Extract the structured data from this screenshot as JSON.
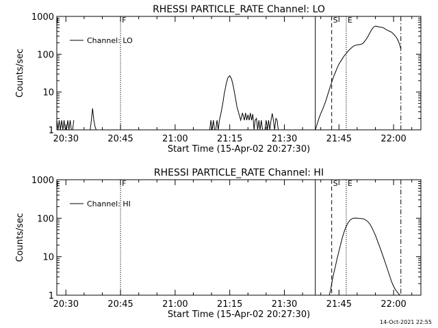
{
  "chart_data": [
    {
      "type": "line",
      "title": "RHESSI PARTICLE_RATE Channel: LO",
      "xlabel": "Start Time (15-Apr-02 20:27:30)",
      "ylabel": "Counts/sec",
      "y_scale": "log",
      "ylim": [
        1,
        1000
      ],
      "xlim": [
        "20:27:30",
        "22:07:30"
      ],
      "x_ticks": [
        "20:30",
        "20:45",
        "21:00",
        "21:15",
        "21:30",
        "21:45",
        "22:00"
      ],
      "y_ticks": [
        "1",
        "10",
        "100",
        "1000"
      ],
      "legend": {
        "position": "top-left",
        "entries": [
          "Channel: LO"
        ]
      },
      "markers": [
        {
          "label": "F",
          "time": "20:45:00",
          "style": "dotted"
        },
        {
          "label": "",
          "time": "21:38:30",
          "style": "solid"
        },
        {
          "label": "S",
          "time": "21:43:00",
          "style": "dashed"
        },
        {
          "label": "E",
          "time": "21:47:00",
          "style": "dotted"
        },
        {
          "label": "",
          "time": "22:02:00",
          "style": "dash-dot"
        }
      ],
      "series": [
        {
          "name": "Channel: LO",
          "segments": [
            {
              "x": [
                "20:27:30",
                "20:27:50",
                "20:28:10",
                "20:28:30",
                "20:28:50",
                "20:29:10",
                "20:29:30",
                "20:29:50",
                "20:30:10",
                "20:30:30",
                "20:30:50",
                "20:31:10",
                "20:31:30",
                "20:31:50",
                "20:32:10"
              ],
              "y": [
                1.8,
                1.0,
                1.8,
                1.0,
                1.8,
                1.0,
                1.8,
                1.0,
                1.0,
                1.8,
                1.0,
                1.8,
                1.0,
                1.0,
                1.8
              ]
            },
            {
              "x": [
                "20:36:40",
                "20:37:00",
                "20:37:20",
                "20:37:40",
                "20:38:00",
                "20:38:20"
              ],
              "y": [
                1.0,
                1.8,
                3.7,
                1.8,
                1.2,
                1.0
              ]
            },
            {
              "x": [
                "21:09:30",
                "21:09:50",
                "21:10:10",
                "21:10:30",
                "21:10:50",
                "21:11:10",
                "21:11:30",
                "21:11:50",
                "21:12:10",
                "21:12:30",
                "21:13:00",
                "21:13:30",
                "21:14:00",
                "21:14:30",
                "21:15:00",
                "21:15:30",
                "21:16:00",
                "21:16:30",
                "21:17:00",
                "21:17:30",
                "21:18:00",
                "21:18:30",
                "21:19:00",
                "21:19:20",
                "21:19:40",
                "21:20:00",
                "21:20:20",
                "21:20:40",
                "21:21:00",
                "21:21:20",
                "21:21:40",
                "21:22:00",
                "21:22:20",
                "21:22:40",
                "21:23:00",
                "21:23:20",
                "21:23:40",
                "21:24:00",
                "21:24:20",
                "21:24:40",
                "21:25:00",
                "21:25:20",
                "21:25:40",
                "21:26:00",
                "21:26:20",
                "21:26:40",
                "21:27:00",
                "21:27:20",
                "21:27:40",
                "21:28:00",
                "21:28:20"
              ],
              "y": [
                1.0,
                1.8,
                1.0,
                1.8,
                1.0,
                1.0,
                1.8,
                1.0,
                1.8,
                2.5,
                4.5,
                9,
                16,
                24,
                27,
                22,
                14,
                7.5,
                4.0,
                2.7,
                1.8,
                2.8,
                1.8,
                2.8,
                1.8,
                2.5,
                1.8,
                2.8,
                1.8,
                2.6,
                1.0,
                1.8,
                2.0,
                1.0,
                1.8,
                1.0,
                1.8,
                1.0,
                1.0,
                1.0,
                1.8,
                1.0,
                1.8,
                1.0,
                1.8,
                2.7,
                1.8,
                1.0,
                2.0,
                1.8,
                1.0
              ]
            },
            {
              "x": [
                "21:38:30",
                "21:39:00",
                "21:39:30",
                "21:40:00",
                "21:40:30",
                "21:41:00",
                "21:41:30",
                "21:42:00",
                "21:42:30",
                "21:43:00",
                "21:43:30",
                "21:44:00",
                "21:44:30",
                "21:45:00",
                "21:45:30",
                "21:46:00",
                "21:46:30",
                "21:47:00",
                "21:47:30",
                "21:48:00",
                "21:48:30",
                "21:49:00",
                "21:49:30",
                "21:50:00",
                "21:50:30",
                "21:51:00",
                "21:51:30",
                "21:52:00",
                "21:52:30",
                "21:53:00",
                "21:53:30",
                "21:54:00",
                "21:54:30",
                "21:55:00",
                "21:55:30",
                "21:56:00",
                "21:56:30",
                "21:57:00",
                "21:57:30",
                "21:58:00",
                "21:58:30",
                "21:59:00",
                "21:59:30",
                "22:00:00",
                "22:00:30",
                "22:01:00",
                "22:01:30",
                "22:02:00"
              ],
              "y": [
                1.0,
                1.4,
                2.0,
                2.7,
                3.5,
                4.6,
                6.3,
                9,
                13,
                18,
                25,
                33,
                43,
                55,
                66,
                78,
                92,
                105,
                120,
                135,
                150,
                163,
                172,
                176,
                178,
                182,
                192,
                215,
                250,
                300,
                370,
                450,
                520,
                555,
                545,
                525,
                520,
                510,
                480,
                445,
                420,
                400,
                380,
                340,
                300,
                255,
                200,
                140
              ]
            }
          ]
        }
      ]
    },
    {
      "type": "line",
      "title": "RHESSI PARTICLE_RATE Channel: HI",
      "xlabel": "Start Time (15-Apr-02 20:27:30)",
      "ylabel": "Counts/sec",
      "y_scale": "log",
      "ylim": [
        1,
        1000
      ],
      "xlim": [
        "20:27:30",
        "22:07:30"
      ],
      "x_ticks": [
        "20:30",
        "20:45",
        "21:00",
        "21:15",
        "21:30",
        "21:45",
        "22:00"
      ],
      "y_ticks": [
        "1",
        "10",
        "100",
        "1000"
      ],
      "legend": {
        "position": "top-left",
        "entries": [
          "Channel: HI"
        ]
      },
      "markers": [
        {
          "label": "F",
          "time": "20:45:00",
          "style": "dotted"
        },
        {
          "label": "",
          "time": "21:38:30",
          "style": "solid"
        },
        {
          "label": "S",
          "time": "21:43:00",
          "style": "dashed"
        },
        {
          "label": "E",
          "time": "21:47:00",
          "style": "dotted"
        },
        {
          "label": "",
          "time": "22:02:00",
          "style": "dash-dot"
        }
      ],
      "series": [
        {
          "name": "Channel: HI",
          "segments": [
            {
              "x": [
                "21:42:20",
                "21:42:40",
                "21:43:00",
                "21:43:30",
                "21:44:00",
                "21:44:30",
                "21:45:00",
                "21:45:30",
                "21:46:00",
                "21:46:30",
                "21:47:00",
                "21:47:30",
                "21:48:00",
                "21:48:30",
                "21:49:00",
                "21:49:30",
                "21:50:00",
                "21:50:30",
                "21:51:00",
                "21:51:30",
                "21:52:00",
                "21:52:30",
                "21:53:00",
                "21:53:30",
                "21:54:00",
                "21:54:30",
                "21:55:00",
                "21:55:30",
                "21:56:00",
                "21:56:30",
                "21:57:00",
                "21:57:30",
                "21:58:00",
                "21:58:30",
                "21:59:00",
                "21:59:30",
                "22:00:00",
                "22:00:30",
                "22:01:00",
                "22:01:30",
                "22:01:50"
              ],
              "y": [
                1.0,
                1.3,
                2.0,
                3.5,
                5.5,
                9,
                14,
                22,
                33,
                47,
                62,
                76,
                88,
                96,
                100,
                101,
                100,
                99,
                98,
                97,
                94,
                88,
                80,
                70,
                58,
                46,
                36,
                27,
                20,
                15,
                11,
                8,
                5.8,
                4.2,
                3.0,
                2.2,
                1.7,
                1.4,
                1.2,
                1.05,
                1.0
              ]
            }
          ]
        }
      ]
    }
  ],
  "footer": {
    "timestamp": "14-Oct-2021 22:55"
  },
  "colors": {
    "background": "#ffffff",
    "foreground": "#000000"
  }
}
